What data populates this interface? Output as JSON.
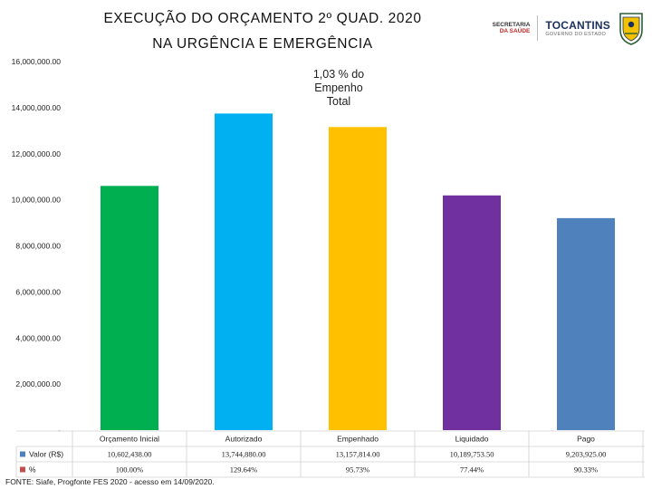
{
  "header": {
    "title_line1": "EXECUÇÃO DO ORÇAMENTO 2º QUAD. 2020",
    "title_line2": "NA URGÊNCIA E EMERGÊNCIA"
  },
  "logos": {
    "secretaria_line1": "SECRETARIA",
    "secretaria_line2": "DA SAÚDE",
    "tocantins": "TOCANTINS",
    "governo": "GOVERNO DO ESTADO"
  },
  "annotation": {
    "line1": "1,03 % do",
    "line2": "Empenho",
    "line3": "Total"
  },
  "footer": {
    "source": "FONTE: Siafe, Progfonte FES 2020 - acesso em 14/09/2020."
  },
  "chart_data": {
    "type": "bar",
    "categories": [
      "Orçamento Inicial",
      "Autorizado",
      "Empenhado",
      "Liquidado",
      "Pago"
    ],
    "series": [
      {
        "name": "Valor (R$)",
        "values": [
          10602438.0,
          13744880.0,
          13157814.0,
          10189753.5,
          9203925.0
        ],
        "labels": [
          "10,602,438.00",
          "13,744,880.00",
          "13,157,814.00",
          "10,189,753.50",
          "9,203,925.00"
        ]
      },
      {
        "name": "%",
        "values": [
          100.0,
          129.64,
          95.73,
          77.44,
          90.33
        ],
        "labels": [
          "100.00%",
          "129.64%",
          "95.73%",
          "77.44%",
          "90.33%"
        ]
      }
    ],
    "bar_colors": [
      "#00b050",
      "#00b0f0",
      "#ffc000",
      "#7030a0",
      "#4f81bd"
    ],
    "ylim": [
      0,
      16000000
    ],
    "yticks": [
      0,
      2000000,
      4000000,
      6000000,
      8000000,
      10000000,
      12000000,
      14000000,
      16000000
    ],
    "ytick_labels": [
      "-",
      "2,000,000.00",
      "4,000,000.00",
      "6,000,000.00",
      "8,000,000.00",
      "10,000,000.00",
      "12,000,000.00",
      "14,000,000.00",
      "16,000,000.00"
    ],
    "legend_colors": [
      "#4f81bd",
      "#c0504d"
    ],
    "legend_placement": "data-table-left",
    "grid": false
  }
}
